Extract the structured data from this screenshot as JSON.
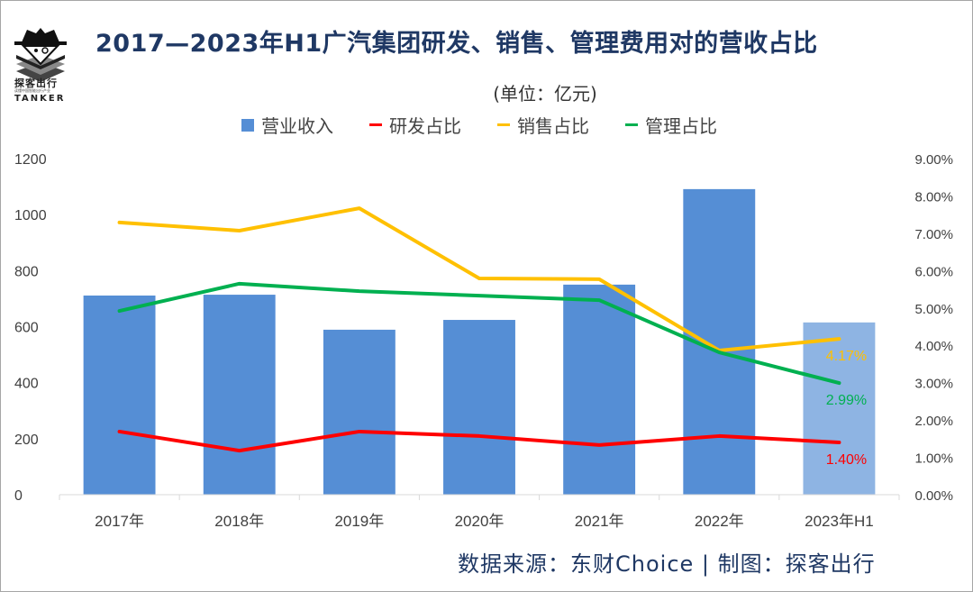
{
  "brand": {
    "name_cn": "探客出行",
    "tagline": "读懂中国智能出行产业",
    "name_en": "TANKER"
  },
  "header": {
    "title": "2017—2023年H1广汽集团研发、销售、管理费用对的营收占比",
    "unit": "(单位：亿元)"
  },
  "footer": {
    "source": "数据来源：东财Choice  |  制图：探客出行"
  },
  "colors": {
    "bar": "#558ed5",
    "bar_highlight": "#8eb4e3",
    "rd": "#ff0000",
    "sales": "#ffc000",
    "admin": "#00b050",
    "title": "#1f3864",
    "axis_text": "#404040"
  },
  "chart_data": {
    "type": "bar+line",
    "title": "2017—2023年H1广汽集团研发、销售、管理费用对的营收占比",
    "subtitle": "(单位：亿元)",
    "categories": [
      "2017年",
      "2018年",
      "2019年",
      "2020年",
      "2021年",
      "2022年",
      "2023年H1"
    ],
    "legend": [
      "营业收入",
      "研发占比",
      "销售占比",
      "管理占比"
    ],
    "legend_position": "top",
    "series": [
      {
        "name": "营业收入",
        "type": "bar",
        "axis": "left",
        "values": [
          711,
          714,
          589,
          624,
          750,
          1091,
          615
        ]
      },
      {
        "name": "研发占比",
        "type": "line",
        "axis": "right",
        "values": [
          1.69,
          1.18,
          1.69,
          1.57,
          1.33,
          1.57,
          1.4
        ]
      },
      {
        "name": "销售占比",
        "type": "line",
        "axis": "right",
        "values": [
          7.29,
          7.07,
          7.67,
          5.79,
          5.77,
          3.86,
          4.17
        ]
      },
      {
        "name": "管理占比",
        "type": "line",
        "axis": "right",
        "values": [
          4.92,
          5.65,
          5.45,
          5.33,
          5.21,
          3.81,
          2.99
        ]
      }
    ],
    "data_labels": [
      {
        "series": "销售占比",
        "category": "2023年H1",
        "text": "4.17%"
      },
      {
        "series": "管理占比",
        "category": "2023年H1",
        "text": "2.99%"
      },
      {
        "series": "研发占比",
        "category": "2023年H1",
        "text": "1.40%"
      }
    ],
    "y_left": {
      "label": "",
      "ylim": [
        0,
        1200
      ],
      "ticks": [
        "0",
        "200",
        "400",
        "600",
        "800",
        "1000",
        "1200"
      ]
    },
    "y_right": {
      "label": "",
      "ylim": [
        0,
        9
      ],
      "ticks": [
        "0.00%",
        "1.00%",
        "2.00%",
        "3.00%",
        "4.00%",
        "5.00%",
        "6.00%",
        "7.00%",
        "8.00%",
        "9.00%"
      ]
    },
    "xlabel": "",
    "grid": false
  }
}
